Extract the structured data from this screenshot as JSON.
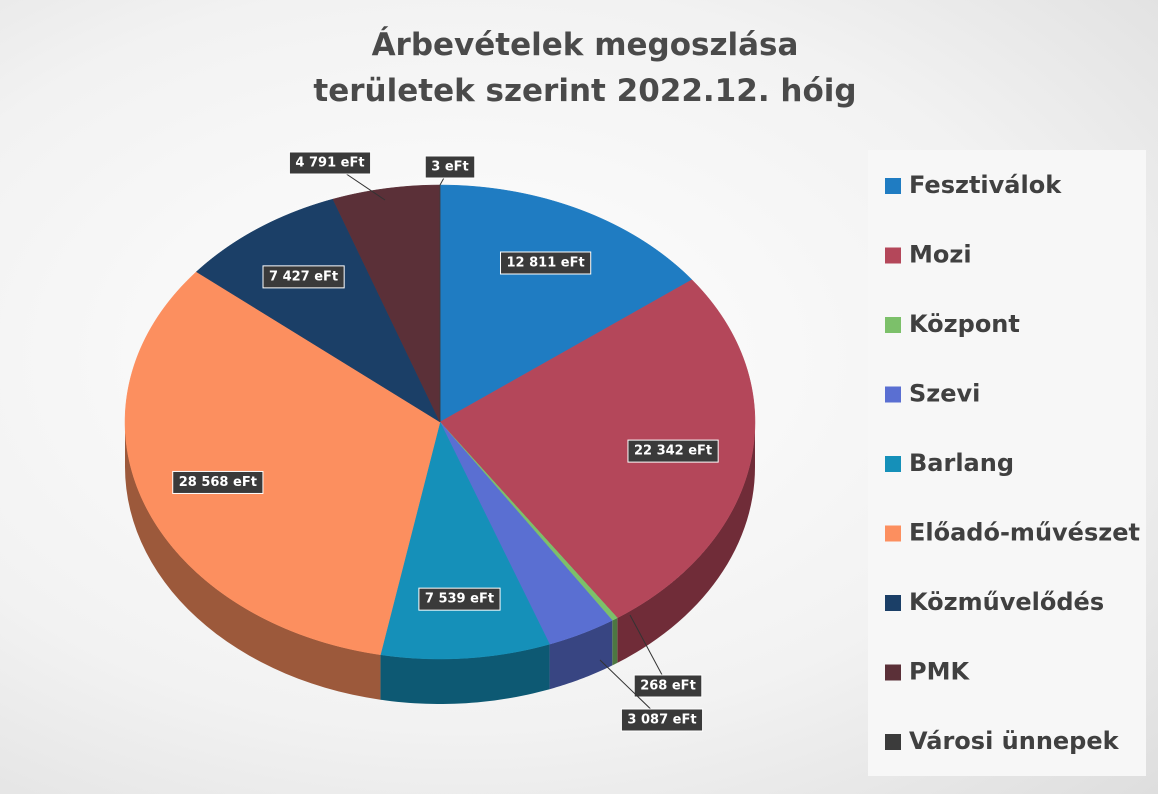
{
  "chart_data": {
    "type": "pie",
    "title": "Árbevételek megoszlása területek szerint 2022.12. hóig",
    "categories": [
      "Fesztiválok",
      "Mozi",
      "Központ",
      "Szevi",
      "Barlang",
      "Előadó-művészet",
      "Közművelődés",
      "PMK",
      "Városi ünnepek"
    ],
    "values": [
      12811,
      22342,
      268,
      3087,
      7539,
      28568,
      7427,
      4791,
      3
    ],
    "value_labels": [
      "12 811 eFt",
      "22 342 eFt",
      "268 eFt",
      "3 087 eFt",
      "7 539 eFt",
      "28 568 eFt",
      "7 427 eFt",
      "4 791 eFt",
      "3 eFt"
    ],
    "colors": [
      "#1f7cc2",
      "#b4475a",
      "#7cc06a",
      "#5a6fd2",
      "#1590b9",
      "#fc8f5f",
      "#1b3f67",
      "#5b3038",
      "#3b3b3b"
    ],
    "legend": "right"
  }
}
